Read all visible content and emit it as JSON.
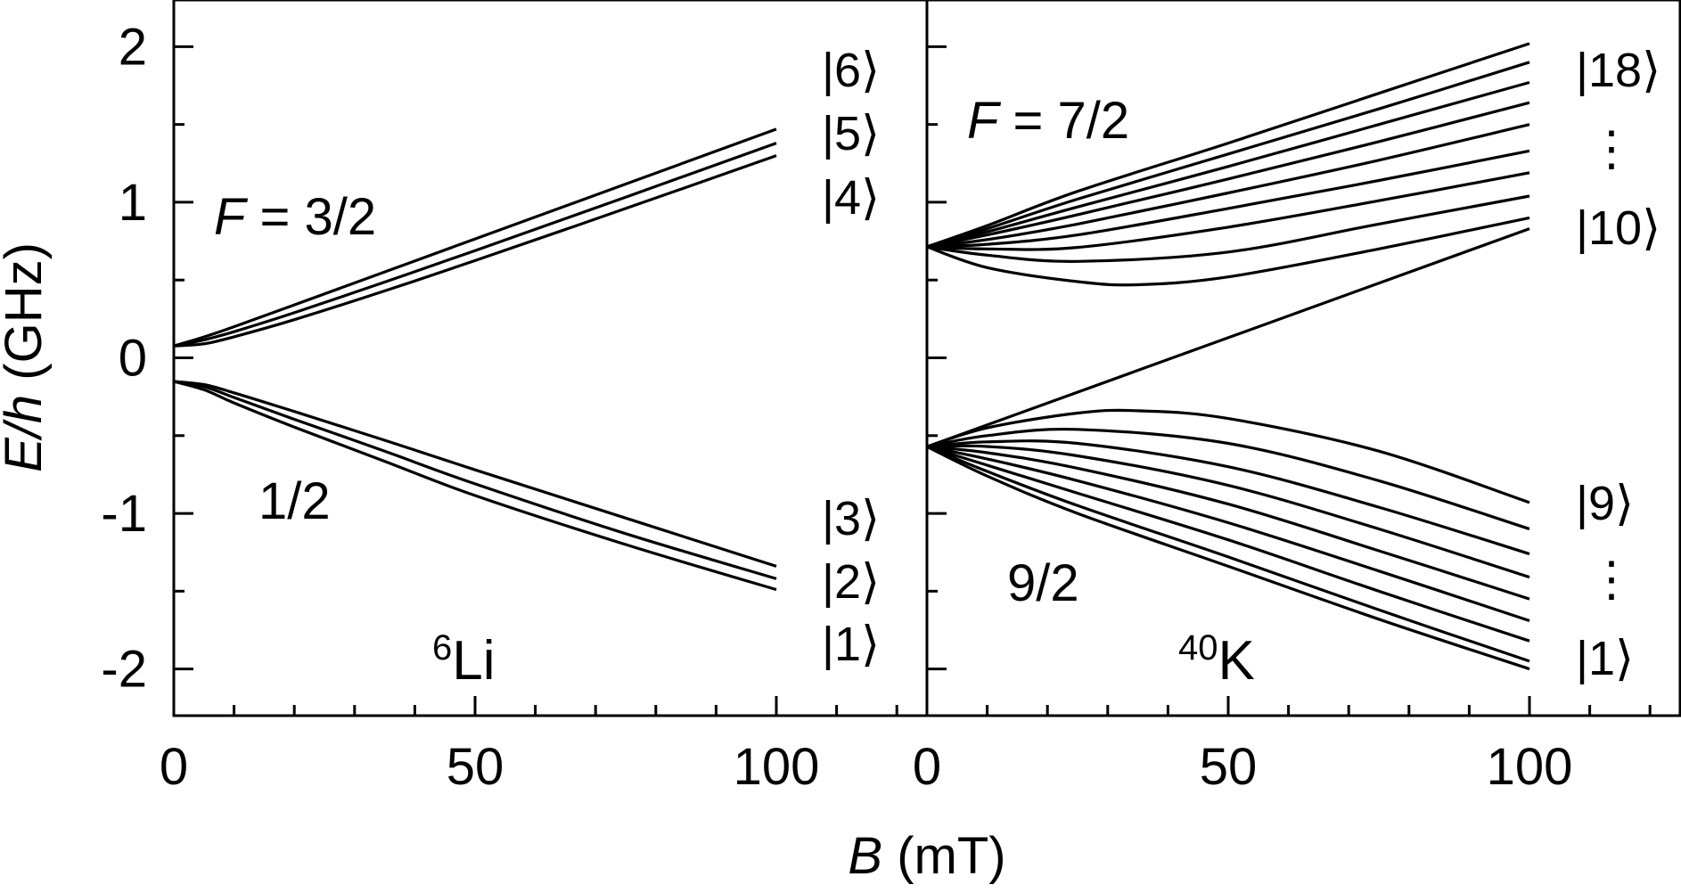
{
  "figure": {
    "ylabel": {
      "italic": "E/h",
      "rest": " (GHz)"
    },
    "xlabel": {
      "italic": "B",
      "rest": " (mT)"
    },
    "line_color": "#000000"
  },
  "chart_data": [
    {
      "type": "line",
      "panel": "6Li",
      "species": {
        "mass": "6",
        "symbol": "Li"
      },
      "xlim": [
        0,
        125
      ],
      "ylim": [
        -2.3,
        2.3
      ],
      "x_ticks": [
        0,
        50,
        100
      ],
      "x_tick_labels": [
        "0",
        "50",
        "100"
      ],
      "y_ticks": [
        -2,
        -1,
        0,
        1,
        2
      ],
      "y_tick_labels": [
        "-2",
        "-1",
        "0",
        "1",
        "2"
      ],
      "annotations": {
        "upper": {
          "prefix": "F",
          "value": " = 3/2"
        },
        "lower": "1/2"
      },
      "state_labels": [
        "|6⟩",
        "|5⟩",
        "|4⟩",
        "|3⟩",
        "|2⟩",
        "|1⟩"
      ],
      "series": [
        {
          "values": [
            [
              0,
              0.076
            ],
            [
              5,
              0.134
            ],
            [
              10,
              0.2
            ],
            [
              20,
              0.34
            ],
            [
              35,
              0.552
            ],
            [
              50,
              0.764
            ],
            [
              75,
              1.117
            ],
            [
              100,
              1.47
            ]
          ]
        },
        {
          "values": [
            [
              0,
              0.076
            ],
            [
              5,
              0.115
            ],
            [
              10,
              0.168
            ],
            [
              20,
              0.29
            ],
            [
              35,
              0.487
            ],
            [
              50,
              0.689
            ],
            [
              75,
              1.033
            ],
            [
              100,
              1.38
            ]
          ]
        },
        {
          "values": [
            [
              0,
              0.076
            ],
            [
              5,
              0.09
            ],
            [
              10,
              0.135
            ],
            [
              20,
              0.245
            ],
            [
              35,
              0.43
            ],
            [
              50,
              0.625
            ],
            [
              75,
              0.96
            ],
            [
              100,
              1.3
            ]
          ]
        },
        {
          "values": [
            [
              0,
              -0.152
            ],
            [
              5,
              -0.172
            ],
            [
              10,
              -0.225
            ],
            [
              20,
              -0.345
            ],
            [
              35,
              -0.53
            ],
            [
              50,
              -0.72
            ],
            [
              75,
              -1.03
            ],
            [
              100,
              -1.34
            ]
          ]
        },
        {
          "values": [
            [
              0,
              -0.152
            ],
            [
              5,
              -0.185
            ],
            [
              10,
              -0.255
            ],
            [
              20,
              -0.395
            ],
            [
              35,
              -0.6
            ],
            [
              50,
              -0.81
            ],
            [
              75,
              -1.13
            ],
            [
              100,
              -1.42
            ]
          ]
        },
        {
          "values": [
            [
              0,
              -0.152
            ],
            [
              5,
              -0.205
            ],
            [
              10,
              -0.29
            ],
            [
              20,
              -0.445
            ],
            [
              35,
              -0.665
            ],
            [
              50,
              -0.885
            ],
            [
              75,
              -1.2
            ],
            [
              100,
              -1.49
            ]
          ]
        }
      ]
    },
    {
      "type": "line",
      "panel": "40K",
      "species": {
        "mass": "40",
        "symbol": "K"
      },
      "xlim": [
        0,
        125
      ],
      "ylim": [
        -2.3,
        2.3
      ],
      "x_ticks": [
        0,
        50,
        100
      ],
      "x_tick_labels": [
        "0",
        "50",
        "100"
      ],
      "y_ticks": [
        -2,
        -1,
        0,
        1,
        2
      ],
      "annotations": {
        "upper": {
          "prefix": "F",
          "value": " = 7/2"
        },
        "lower": "9/2"
      },
      "state_labels": [
        "|18⟩",
        "⋮",
        "|10⟩",
        "|9⟩",
        "⋮",
        "|1⟩"
      ],
      "series": [
        {
          "values": [
            [
              0,
              0.714
            ],
            [
              10,
              0.85
            ],
            [
              25,
              1.07
            ],
            [
              50,
              1.38
            ],
            [
              75,
              1.7
            ],
            [
              100,
              2.02
            ]
          ]
        },
        {
          "values": [
            [
              0,
              0.714
            ],
            [
              10,
              0.83
            ],
            [
              25,
              1.02
            ],
            [
              50,
              1.31
            ],
            [
              75,
              1.6
            ],
            [
              100,
              1.9
            ]
          ]
        },
        {
          "values": [
            [
              0,
              0.714
            ],
            [
              10,
              0.81
            ],
            [
              25,
              0.97
            ],
            [
              50,
              1.23
            ],
            [
              75,
              1.5
            ],
            [
              100,
              1.77
            ]
          ]
        },
        {
          "values": [
            [
              0,
              0.714
            ],
            [
              10,
              0.79
            ],
            [
              25,
              0.92
            ],
            [
              50,
              1.15
            ],
            [
              75,
              1.39
            ],
            [
              100,
              1.64
            ]
          ]
        },
        {
          "values": [
            [
              0,
              0.714
            ],
            [
              10,
              0.76
            ],
            [
              25,
              0.86
            ],
            [
              50,
              1.06
            ],
            [
              75,
              1.27
            ],
            [
              100,
              1.5
            ]
          ]
        },
        {
          "values": [
            [
              0,
              0.714
            ],
            [
              10,
              0.73
            ],
            [
              25,
              0.79
            ],
            [
              50,
              0.96
            ],
            [
              75,
              1.14
            ],
            [
              100,
              1.33
            ]
          ]
        },
        {
          "values": [
            [
              0,
              0.714
            ],
            [
              10,
              0.7
            ],
            [
              25,
              0.71
            ],
            [
              50,
              0.84
            ],
            [
              75,
              1.01
            ],
            [
              100,
              1.19
            ]
          ]
        },
        {
          "values": [
            [
              0,
              0.714
            ],
            [
              10,
              0.66
            ],
            [
              25,
              0.62
            ],
            [
              50,
              0.68
            ],
            [
              75,
              0.86
            ],
            [
              100,
              1.04
            ]
          ]
        },
        {
          "values": [
            [
              0,
              0.714
            ],
            [
              10,
              0.58
            ],
            [
              25,
              0.49
            ],
            [
              35,
              0.47
            ],
            [
              50,
              0.52
            ],
            [
              75,
              0.7
            ],
            [
              100,
              0.9
            ]
          ]
        },
        {
          "values": [
            [
              0,
              -0.571
            ],
            [
              100,
              0.83
            ]
          ]
        },
        {
          "values": [
            [
              0,
              -0.571
            ],
            [
              10,
              -0.45
            ],
            [
              25,
              -0.355
            ],
            [
              35,
              -0.34
            ],
            [
              50,
              -0.39
            ],
            [
              75,
              -0.6
            ],
            [
              100,
              -0.93
            ]
          ]
        },
        {
          "values": [
            [
              0,
              -0.571
            ],
            [
              10,
              -0.5
            ],
            [
              25,
              -0.46
            ],
            [
              50,
              -0.55
            ],
            [
              75,
              -0.79
            ],
            [
              100,
              -1.1
            ]
          ]
        },
        {
          "values": [
            [
              0,
              -0.571
            ],
            [
              10,
              -0.54
            ],
            [
              25,
              -0.55
            ],
            [
              50,
              -0.7
            ],
            [
              75,
              -0.96
            ],
            [
              100,
              -1.26
            ]
          ]
        },
        {
          "values": [
            [
              0,
              -0.571
            ],
            [
              10,
              -0.57
            ],
            [
              25,
              -0.63
            ],
            [
              50,
              -0.82
            ],
            [
              75,
              -1.1
            ],
            [
              100,
              -1.41
            ]
          ]
        },
        {
          "values": [
            [
              0,
              -0.571
            ],
            [
              10,
              -0.61
            ],
            [
              25,
              -0.71
            ],
            [
              50,
              -0.94
            ],
            [
              75,
              -1.24
            ],
            [
              100,
              -1.55
            ]
          ]
        },
        {
          "values": [
            [
              0,
              -0.571
            ],
            [
              10,
              -0.65
            ],
            [
              25,
              -0.79
            ],
            [
              50,
              -1.06
            ],
            [
              75,
              -1.37
            ],
            [
              100,
              -1.69
            ]
          ]
        },
        {
          "values": [
            [
              0,
              -0.571
            ],
            [
              10,
              -0.69
            ],
            [
              25,
              -0.87
            ],
            [
              50,
              -1.17
            ],
            [
              75,
              -1.5
            ],
            [
              100,
              -1.82
            ]
          ]
        },
        {
          "values": [
            [
              0,
              -0.571
            ],
            [
              10,
              -0.73
            ],
            [
              25,
              -0.95
            ],
            [
              50,
              -1.28
            ],
            [
              75,
              -1.62
            ],
            [
              100,
              -1.95
            ]
          ]
        },
        {
          "values": [
            [
              0,
              -0.571
            ],
            [
              10,
              -0.76
            ],
            [
              25,
              -1.0
            ],
            [
              50,
              -1.34
            ],
            [
              75,
              -1.68
            ],
            [
              100,
              -2.0
            ]
          ]
        }
      ]
    }
  ]
}
